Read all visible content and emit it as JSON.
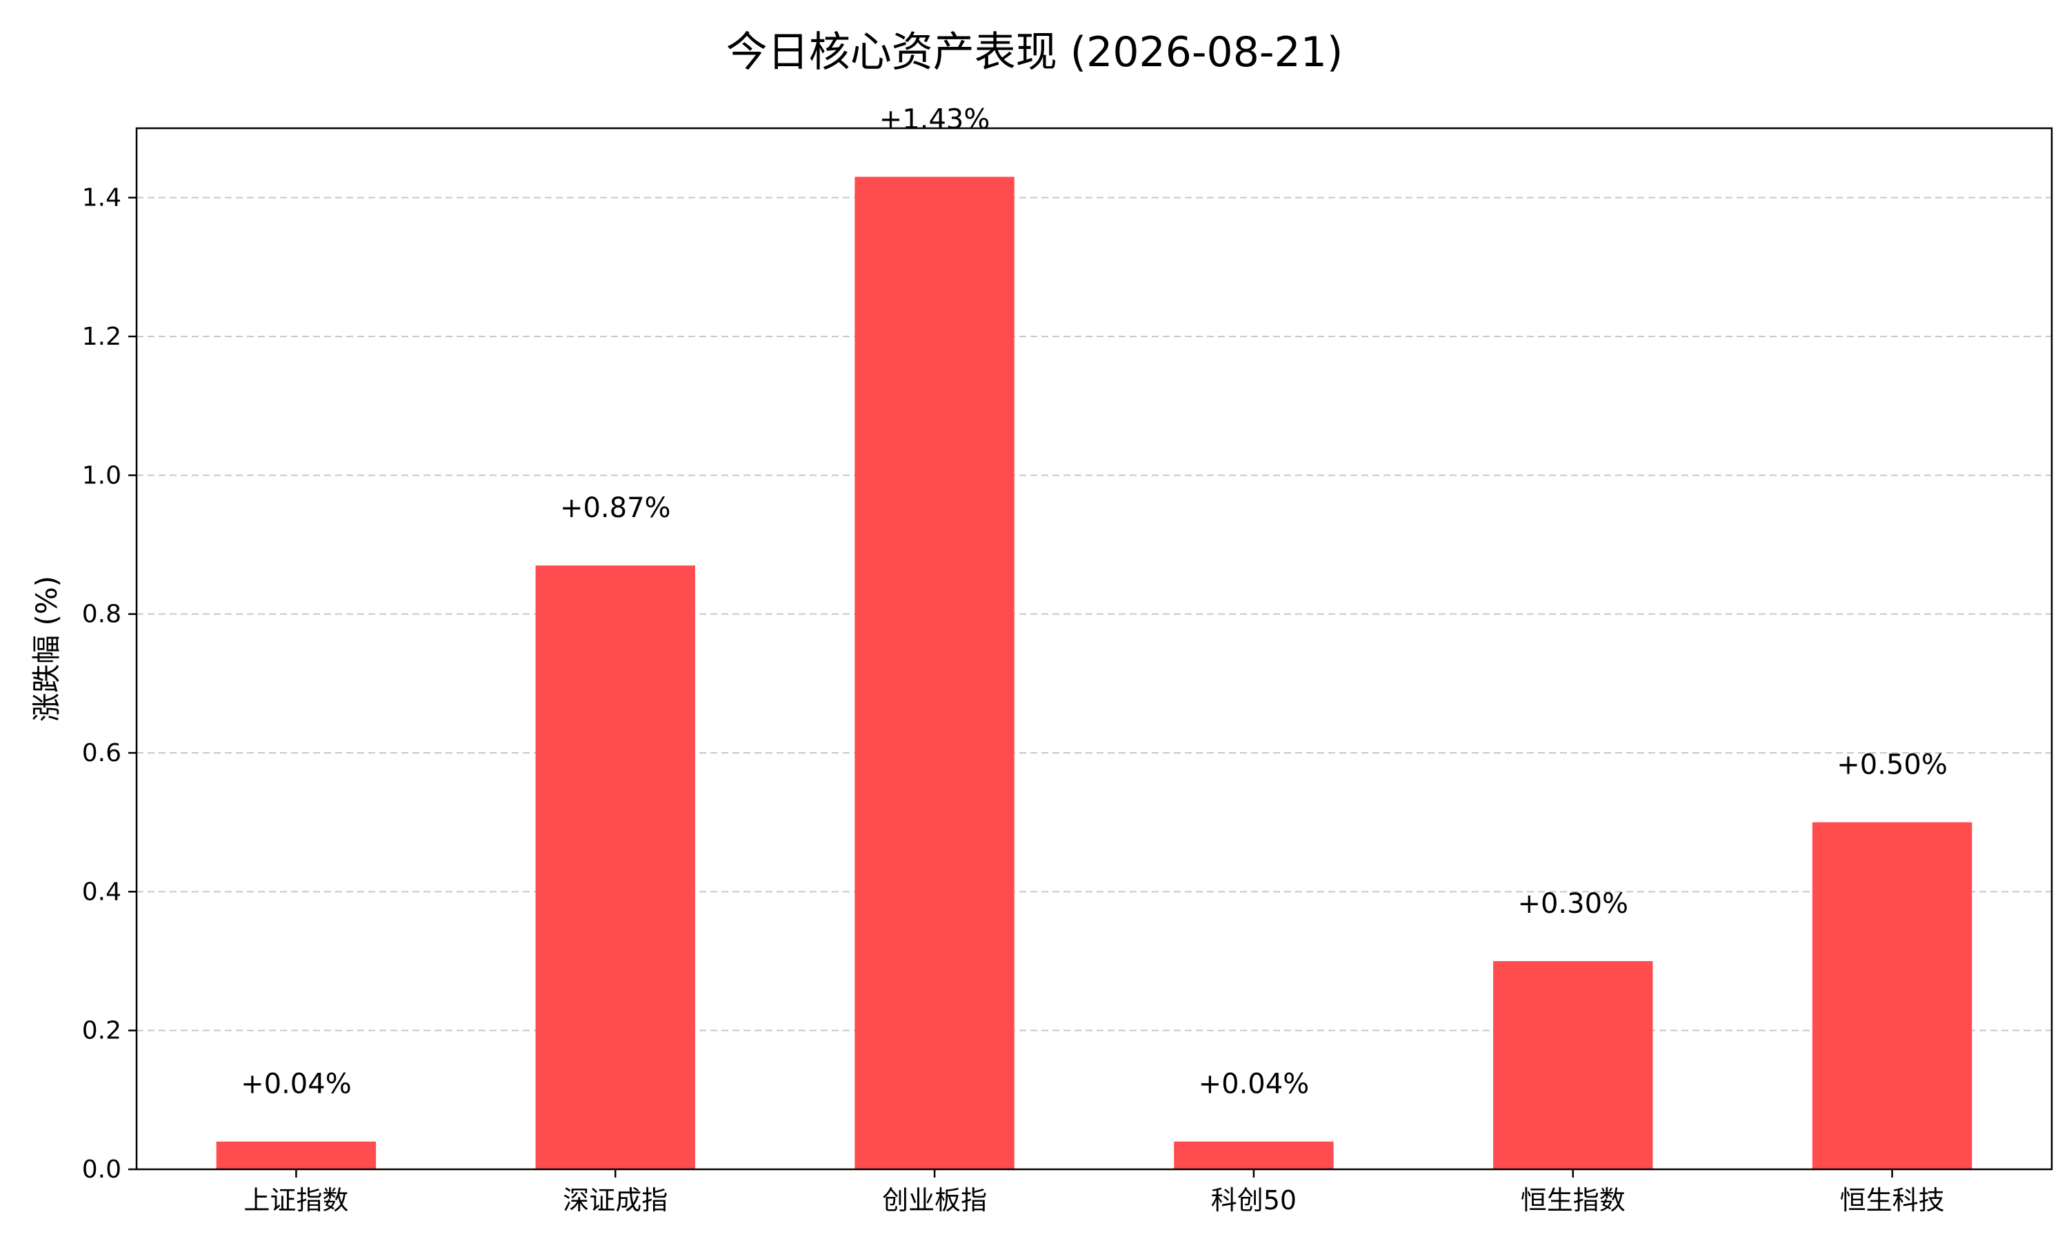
{
  "chart_data": {
    "type": "bar",
    "title": "今日核心资产表现 (2026-08-21)",
    "xlabel": "",
    "ylabel": "涨跌幅 (%)",
    "categories": [
      "上证指数",
      "深证成指",
      "创业板指",
      "科创50",
      "恒生指数",
      "恒生科技"
    ],
    "values": [
      0.04,
      0.87,
      1.43,
      0.04,
      0.3,
      0.5
    ],
    "data_labels": [
      "+0.04%",
      "+0.87%",
      "+1.43%",
      "+0.04%",
      "+0.30%",
      "+0.50%"
    ],
    "ylim": [
      0,
      1.5
    ],
    "yticks": [
      0.0,
      0.2,
      0.4,
      0.6,
      0.8,
      1.0,
      1.2,
      1.4
    ],
    "ytick_labels": [
      "0.0",
      "0.2",
      "0.4",
      "0.6",
      "0.8",
      "1.0",
      "1.2",
      "1.4"
    ],
    "grid": "horizontal dashed",
    "bar_color": "#ff4d4f",
    "grid_color": "#c8c8c8"
  }
}
